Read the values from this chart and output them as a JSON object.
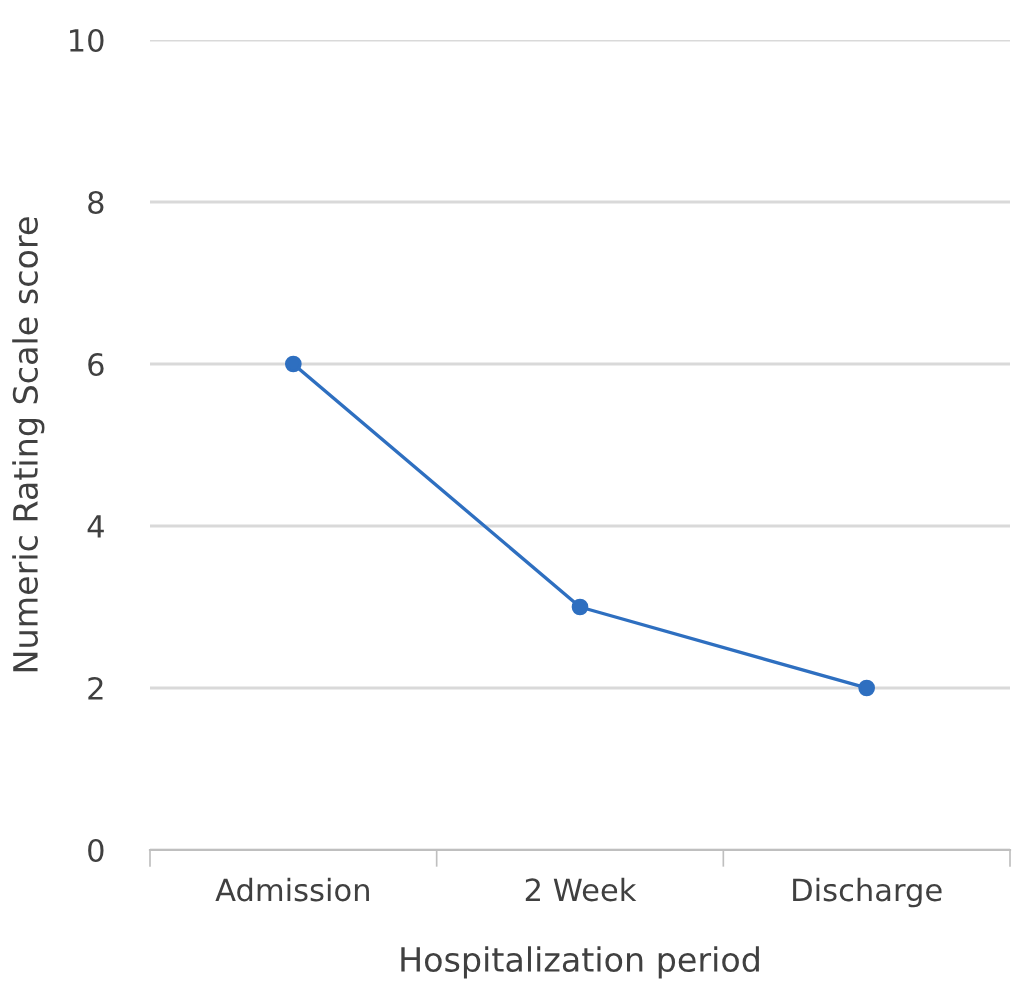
{
  "chart_data": {
    "type": "line",
    "xlabel": "Hospitalization period",
    "ylabel": "Numeric Rating Scale score",
    "categories": [
      "Admission",
      "2 Week",
      "Discharge"
    ],
    "series": [
      {
        "color": "#2e6fc0",
        "values": [
          6,
          3,
          2
        ]
      }
    ],
    "ylim": [
      0,
      10
    ],
    "yticks": [
      0,
      2,
      4,
      6,
      8,
      10
    ],
    "grid": "y",
    "marker": "circle",
    "line_style": "solid",
    "legend": false
  }
}
